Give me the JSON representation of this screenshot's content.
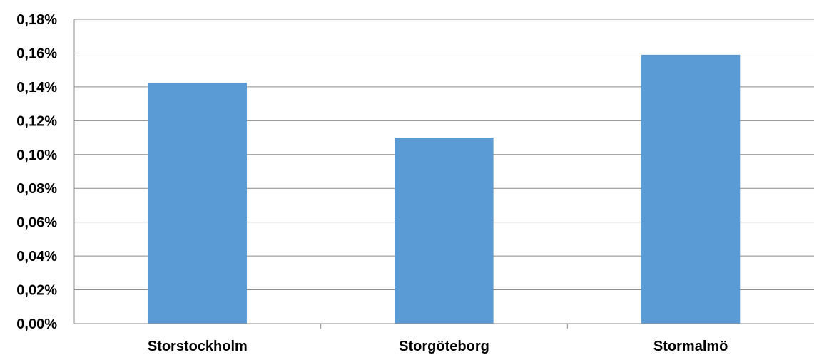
{
  "chart_data": {
    "type": "bar",
    "categories": [
      "Storstockholm",
      "Storgöteborg",
      "Stormalmö"
    ],
    "values": [
      0.1425,
      0.11,
      0.159
    ],
    "y_tick_labels": [
      "0,00%",
      "0,02%",
      "0,04%",
      "0,06%",
      "0,08%",
      "0,10%",
      "0,12%",
      "0,14%",
      "0,16%",
      "0,18%"
    ],
    "ylim": [
      0,
      0.18
    ],
    "y_unit": "%",
    "grid": true,
    "legend": "none",
    "bar_color": "#5b9bd5",
    "title": "",
    "xlabel": "",
    "ylabel": ""
  }
}
